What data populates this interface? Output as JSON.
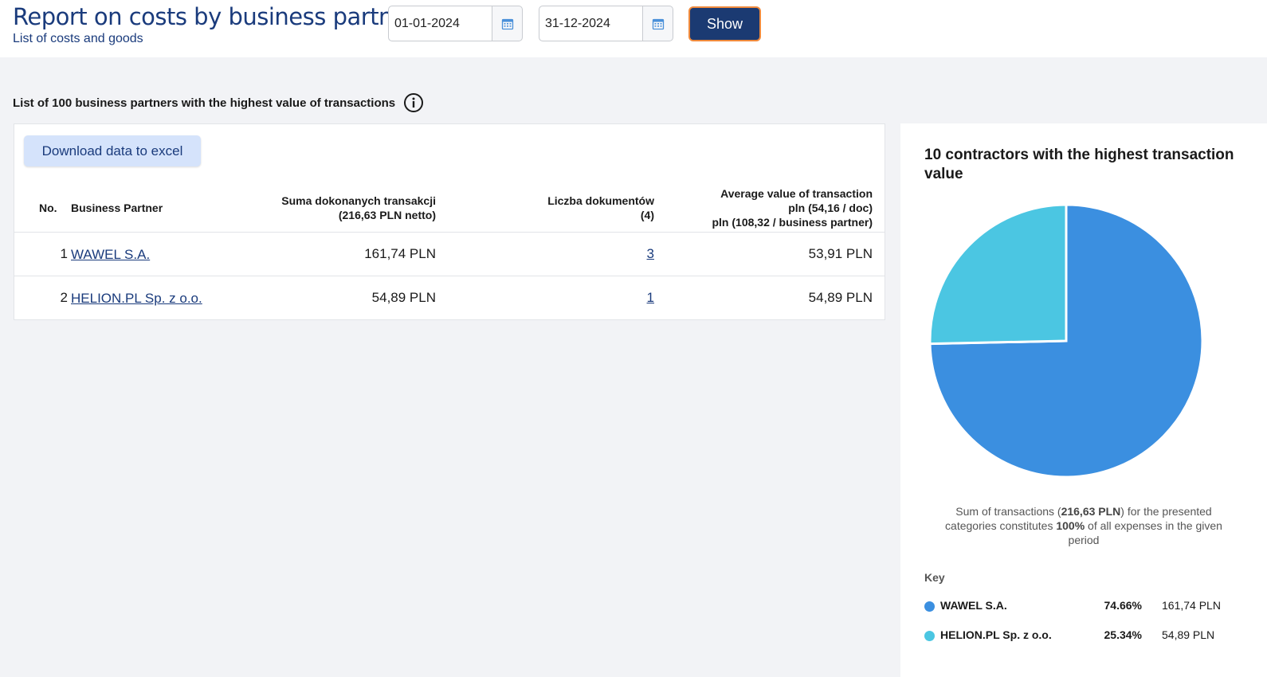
{
  "header": {
    "title": "Report on costs by business partners",
    "subtitle": "List of costs and goods",
    "date_from": "01-01-2024",
    "date_to": "31-12-2024",
    "show_label": "Show"
  },
  "section": {
    "title": "List of 100 business partners with the highest value of transactions"
  },
  "table": {
    "excel_label": "Download data to excel",
    "headers": {
      "no": "No.",
      "partner": "Business Partner",
      "sum_line1": "Suma dokonanych transakcji",
      "sum_line2": "(216,63 PLN netto)",
      "docs_line1": "Liczba dokumentów",
      "docs_line2": "(4)",
      "avg_line1": "Average value of transaction",
      "avg_line2": "pln (54,16 / doc)",
      "avg_line3": "pln (108,32 / business partner)"
    },
    "rows": [
      {
        "no": "1",
        "partner": "WAWEL S.A.",
        "sum": "161,74 PLN",
        "docs": "3",
        "avg": "53,91 PLN"
      },
      {
        "no": "2",
        "partner": "HELION.PL Sp. z o.o.",
        "sum": "54,89 PLN",
        "docs": "1",
        "avg": "54,89 PLN"
      }
    ]
  },
  "chart_card": {
    "caption_pre": "Sum of transactions (",
    "caption_sum": "216,63 PLN",
    "caption_mid": ") for the presented categories constitutes ",
    "caption_pct": "100%",
    "caption_post": " of all expenses in the given period",
    "key_label": "Key"
  },
  "chart_data": {
    "type": "pie",
    "title": "10 contractors with the highest transaction value",
    "slices": [
      {
        "label": "WAWEL S.A.",
        "percent": 74.66,
        "value_label": "161,74 PLN",
        "value": 161.74,
        "color": "#3b8fe0"
      },
      {
        "label": "HELION.PL Sp. z o.o.",
        "percent": 25.34,
        "value_label": "54,89 PLN",
        "value": 54.89,
        "color": "#4bc6e2"
      }
    ],
    "legend_placement": "bottom"
  },
  "colors": {
    "brand": "#1b3a72",
    "accent_border": "#f08a3c",
    "link": "#1a3b7c"
  },
  "icons": {
    "calendar": "calendar-icon",
    "info": "info-icon"
  }
}
